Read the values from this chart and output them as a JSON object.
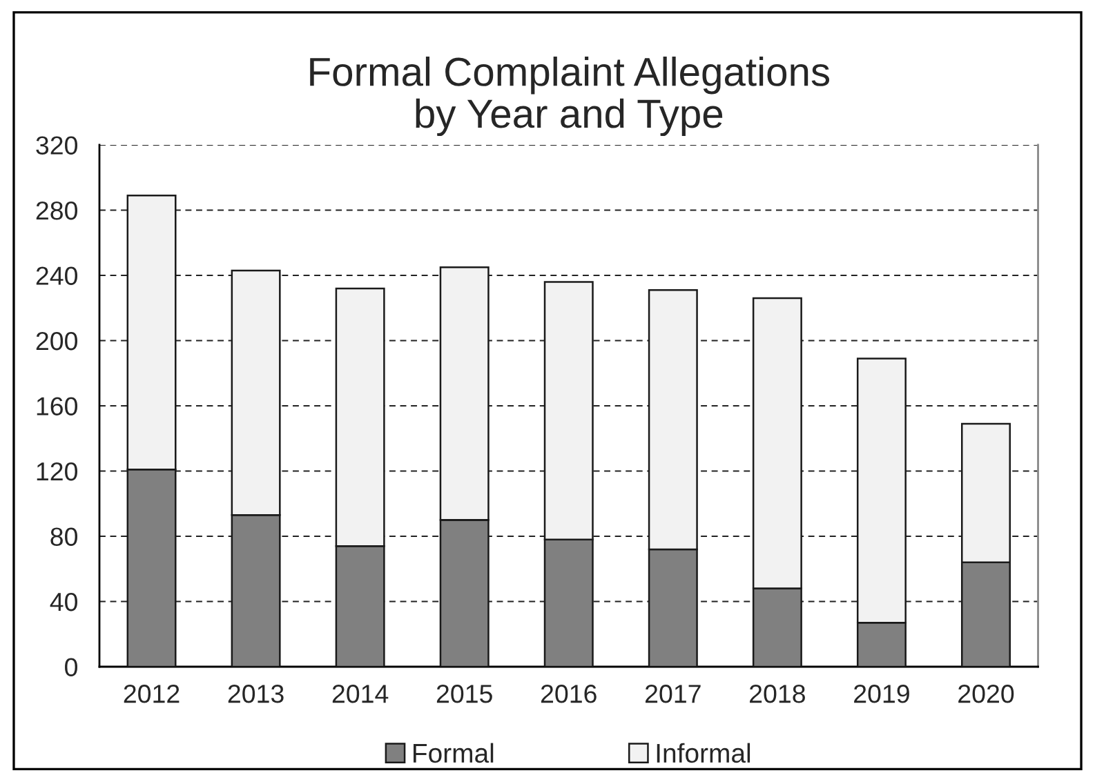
{
  "chart_data": {
    "type": "bar",
    "title": "Formal Complaint Allegations\nby Year and Type",
    "categories": [
      "2012",
      "2013",
      "2014",
      "2015",
      "2016",
      "2017",
      "2018",
      "2019",
      "2020"
    ],
    "stacked": true,
    "series": [
      {
        "name": "Formal",
        "color": "#808080",
        "values": [
          121,
          93,
          74,
          90,
          78,
          72,
          48,
          27,
          64
        ]
      },
      {
        "name": "Informal",
        "color": "#f2f2f2",
        "values": [
          168,
          150,
          158,
          155,
          158,
          159,
          178,
          162,
          85
        ]
      }
    ],
    "ylim": [
      0,
      320
    ],
    "yticks": [
      0,
      40,
      80,
      120,
      160,
      200,
      240,
      280,
      320
    ],
    "grid": "y",
    "legend": "bottom"
  }
}
